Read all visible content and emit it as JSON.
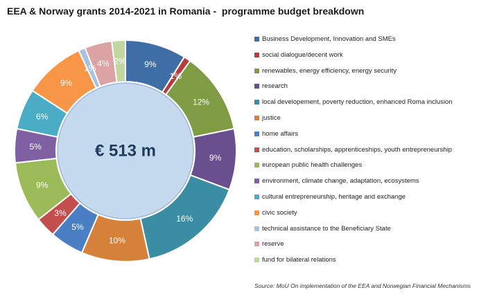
{
  "title": "EEA & Norway grants 2014-2021 in Romania -  programme budget breakdown",
  "source": "Source: MoU On implementation of the EEA and Norwegian Financial Mechanisms",
  "chart_data": {
    "type": "pie",
    "variant": "doughnut",
    "title": "EEA & Norway grants 2014-2021 in Romania -  programme budget breakdown",
    "center_label": "€ 513 m",
    "legend_position": "right",
    "slices": [
      {
        "name": "Business Development, Innovation and SMEs",
        "value": 9,
        "label": "9%",
        "color": "#3f6ea7"
      },
      {
        "name": "social dialogue/decent work",
        "value": 1,
        "label": "1%",
        "color": "#b43c3c"
      },
      {
        "name": "renewables, energy efficiency, energy security",
        "value": 12,
        "label": "12%",
        "color": "#7f9c45"
      },
      {
        "name": "research",
        "value": 9,
        "label": "9%",
        "color": "#6a4f8e"
      },
      {
        "name": "local developement, poverty reduction, enhanced Roma inclusion",
        "value": 16,
        "label": "16%",
        "color": "#3a8da3"
      },
      {
        "name": "justice",
        "value": 10,
        "label": "10%",
        "color": "#d6813a"
      },
      {
        "name": "home affairs",
        "value": 5,
        "label": "5%",
        "color": "#4a7fc4"
      },
      {
        "name": "education, scholarships, apprenticeships, youth entrepreneurship",
        "value": 3,
        "label": "3%",
        "color": "#c44e4e"
      },
      {
        "name": "european public health challenges",
        "value": 9,
        "label": "9%",
        "color": "#9bbb59"
      },
      {
        "name": "environment, climate change, adaptation, ecosystems",
        "value": 5,
        "label": "5%",
        "color": "#7e60a3"
      },
      {
        "name": "cultural entrepreneurship, heritage and exchange",
        "value": 6,
        "label": "6%",
        "color": "#4bacc6"
      },
      {
        "name": "civic society",
        "value": 9,
        "label": "9%",
        "color": "#f79646"
      },
      {
        "name": "technical assistance to the Beneficiary State",
        "value": 1,
        "label": "1%",
        "color": "#a8c1e0"
      },
      {
        "name": "reserve",
        "value": 4,
        "label": "4%",
        "color": "#dba3a3"
      },
      {
        "name": "fund for bilateral relations",
        "value": 2,
        "label": "2%",
        "color": "#c3d6a0"
      }
    ]
  },
  "colors": {
    "center_fill": "#c5daef",
    "center_text": "#1f3b5c"
  }
}
